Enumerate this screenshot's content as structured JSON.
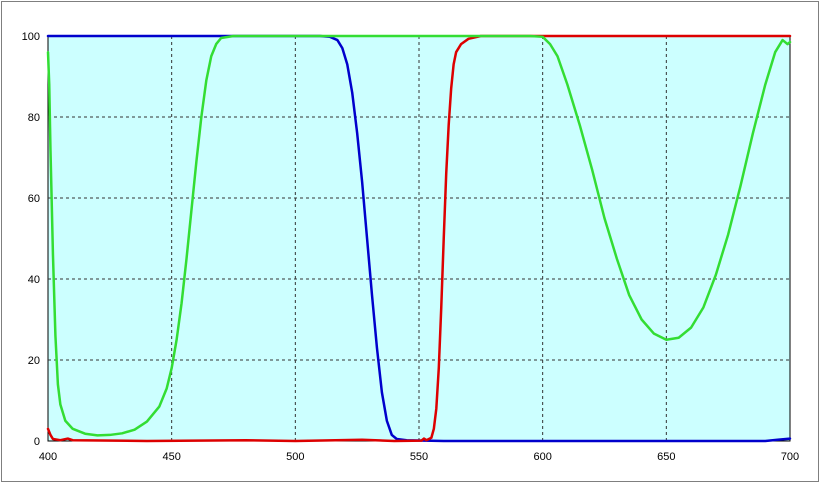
{
  "chart_data": {
    "type": "line",
    "title": "",
    "xlabel": "",
    "ylabel": "",
    "xlim": [
      400,
      700
    ],
    "ylim": [
      0,
      100
    ],
    "x_ticks": [
      400,
      450,
      500,
      550,
      600,
      650,
      700
    ],
    "y_ticks": [
      0,
      20,
      40,
      60,
      80,
      100
    ],
    "grid": true,
    "legend": "none",
    "colors": {
      "plot_background": "#ccffff",
      "frame": "#7f7f7f",
      "grid": "#333333"
    },
    "series": [
      {
        "color": "#0000cc",
        "points": [
          [
            400,
            100
          ],
          [
            500,
            100
          ],
          [
            510,
            100
          ],
          [
            514,
            99.8
          ],
          [
            517,
            99
          ],
          [
            519,
            97
          ],
          [
            521,
            93
          ],
          [
            523,
            86
          ],
          [
            525,
            76
          ],
          [
            527,
            64
          ],
          [
            529,
            50
          ],
          [
            531,
            36
          ],
          [
            533,
            23
          ],
          [
            535,
            12
          ],
          [
            537,
            5
          ],
          [
            539,
            1.5
          ],
          [
            541,
            0.5
          ],
          [
            545,
            0.2
          ],
          [
            560,
            0
          ],
          [
            690,
            0
          ],
          [
            695,
            0.3
          ],
          [
            700,
            0.6
          ]
        ]
      },
      {
        "color": "#dd0000",
        "points": [
          [
            400,
            3
          ],
          [
            401,
            1.5
          ],
          [
            402,
            0.5
          ],
          [
            405,
            0.2
          ],
          [
            408,
            0.6
          ],
          [
            410,
            0.2
          ],
          [
            440,
            0
          ],
          [
            480,
            0.2
          ],
          [
            500,
            0
          ],
          [
            527,
            0.3
          ],
          [
            540,
            0
          ],
          [
            551,
            0.1
          ],
          [
            552,
            0.6
          ],
          [
            553,
            0.2
          ],
          [
            555,
            0.8
          ],
          [
            556,
            3
          ],
          [
            557,
            8
          ],
          [
            558,
            18
          ],
          [
            559,
            33
          ],
          [
            560,
            50
          ],
          [
            561,
            66
          ],
          [
            562,
            78
          ],
          [
            563,
            87
          ],
          [
            564,
            93
          ],
          [
            565,
            96
          ],
          [
            567,
            98
          ],
          [
            570,
            99.3
          ],
          [
            575,
            100
          ],
          [
            600,
            100
          ],
          [
            700,
            100
          ]
        ]
      },
      {
        "color": "#33dd33",
        "points": [
          [
            400,
            96
          ],
          [
            400.5,
            88
          ],
          [
            401,
            72
          ],
          [
            402,
            46
          ],
          [
            403,
            26
          ],
          [
            404,
            14
          ],
          [
            405,
            9
          ],
          [
            407,
            5
          ],
          [
            410,
            3
          ],
          [
            415,
            1.8
          ],
          [
            420,
            1.4
          ],
          [
            425,
            1.5
          ],
          [
            430,
            1.9
          ],
          [
            435,
            2.8
          ],
          [
            440,
            4.8
          ],
          [
            445,
            8.5
          ],
          [
            448,
            13
          ],
          [
            450,
            18
          ],
          [
            452,
            25
          ],
          [
            454,
            34
          ],
          [
            456,
            45
          ],
          [
            458,
            57
          ],
          [
            460,
            69
          ],
          [
            462,
            80
          ],
          [
            464,
            89
          ],
          [
            466,
            95
          ],
          [
            468,
            98
          ],
          [
            470,
            99.5
          ],
          [
            475,
            100
          ],
          [
            595,
            100
          ],
          [
            600,
            99.8
          ],
          [
            603,
            98
          ],
          [
            606,
            95
          ],
          [
            610,
            88
          ],
          [
            615,
            78
          ],
          [
            620,
            67
          ],
          [
            625,
            55
          ],
          [
            630,
            45
          ],
          [
            635,
            36
          ],
          [
            640,
            30
          ],
          [
            645,
            26.5
          ],
          [
            650,
            25
          ],
          [
            655,
            25.5
          ],
          [
            660,
            28
          ],
          [
            665,
            33
          ],
          [
            670,
            41
          ],
          [
            675,
            51
          ],
          [
            680,
            63
          ],
          [
            685,
            76
          ],
          [
            690,
            88
          ],
          [
            694,
            96
          ],
          [
            697,
            99
          ],
          [
            698,
            98.5
          ],
          [
            699,
            98
          ],
          [
            700,
            98.5
          ]
        ]
      }
    ]
  }
}
